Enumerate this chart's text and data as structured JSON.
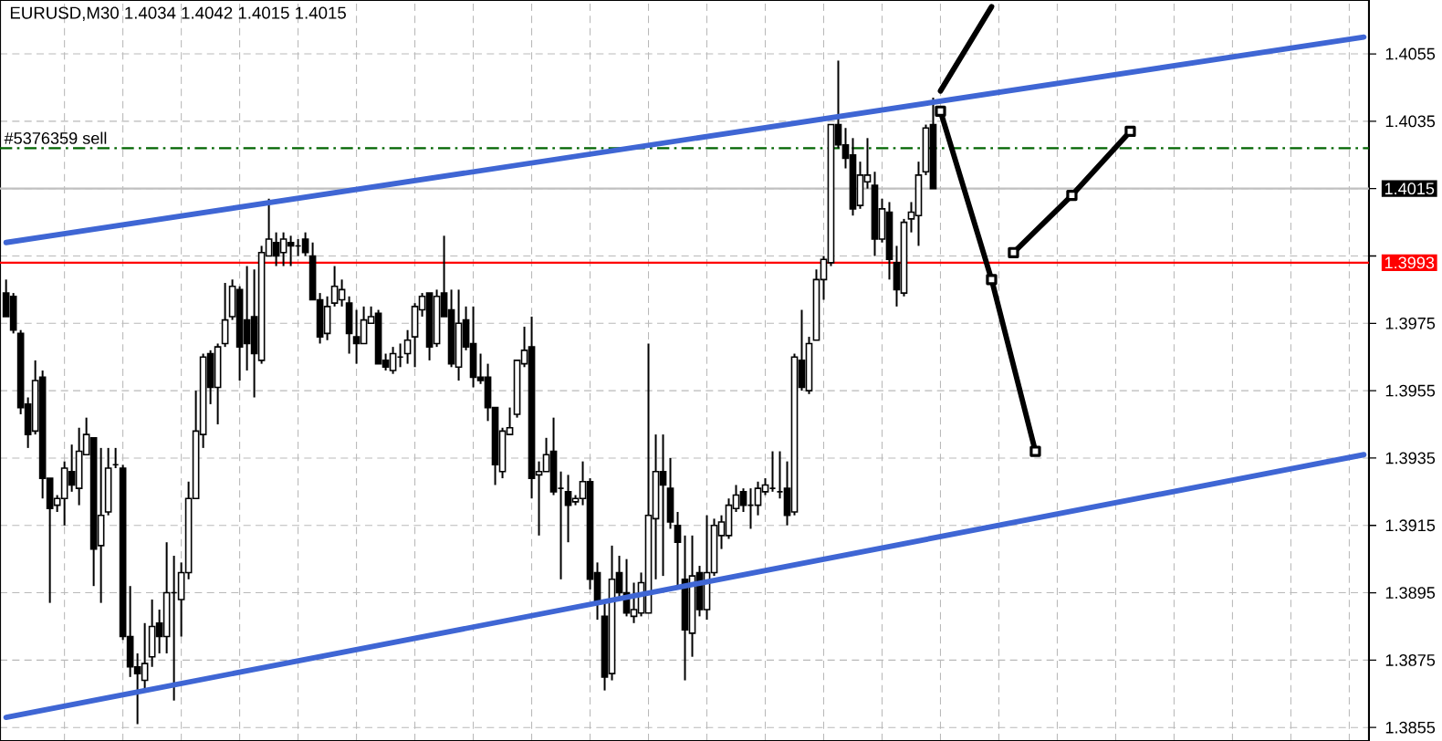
{
  "chart_data": {
    "type": "candlestick",
    "title": "EURUSD,M30  1.4034 1.4042 1.4015 1.4015",
    "categories": [
      null,
      null,
      null,
      null,
      null,
      null,
      null,
      null,
      null,
      null,
      null,
      null,
      null,
      null,
      null,
      null,
      null,
      null,
      null,
      null,
      null,
      null,
      null,
      null,
      null,
      null,
      null,
      null,
      null,
      null,
      null,
      null,
      null,
      null,
      null,
      null,
      null,
      null,
      null,
      null,
      null,
      null,
      null,
      null,
      null,
      null,
      null,
      null,
      null,
      null,
      null,
      null,
      null,
      null,
      null,
      null,
      null,
      null,
      null,
      null,
      null,
      null,
      null,
      null,
      null,
      null,
      null,
      null,
      null,
      null,
      null,
      null,
      null,
      null,
      null,
      null,
      null,
      null,
      null,
      null,
      null,
      null,
      null,
      null,
      null,
      null,
      null,
      null,
      null,
      null,
      null,
      null,
      null,
      null,
      null,
      null,
      null,
      null,
      null,
      null,
      null,
      null,
      null,
      null,
      null,
      null,
      null,
      null,
      null,
      null,
      null,
      null,
      null,
      null,
      null,
      null,
      null,
      null,
      null,
      null,
      null,
      null,
      null,
      null,
      null,
      null,
      null,
      null,
      null,
      null,
      null,
      null,
      null,
      null,
      null,
      null,
      null,
      null,
      null,
      null,
      null,
      null,
      null,
      null,
      null,
      null,
      null,
      null,
      null,
      null,
      null,
      null,
      null,
      null,
      null,
      null,
      null,
      null,
      null,
      null,
      null,
      null,
      null,
      null,
      null,
      null,
      null,
      null,
      null,
      null,
      null,
      null,
      null,
      null,
      null,
      null,
      null,
      null,
      null,
      null,
      null,
      null,
      null,
      null,
      null,
      null,
      null
    ],
    "ohlc": [
      [
        1.3984,
        1.3988,
        1.3977,
        1.3977
      ],
      [
        1.3983,
        1.3984,
        1.3972,
        1.3973
      ],
      [
        1.3972,
        1.3973,
        1.3948,
        1.395
      ],
      [
        1.3951,
        1.3953,
        1.3938,
        1.3942
      ],
      [
        1.3943,
        1.3964,
        1.3942,
        1.3958
      ],
      [
        1.3959,
        1.3961,
        1.3923,
        1.3929
      ],
      [
        1.3929,
        1.3929,
        1.3892,
        1.392
      ],
      [
        1.3921,
        1.3924,
        1.3919,
        1.3923
      ],
      [
        1.3923,
        1.3934,
        1.3915,
        1.3932
      ],
      [
        1.3931,
        1.3939,
        1.3925,
        1.3927
      ],
      [
        1.3926,
        1.3944,
        1.3921,
        1.3937
      ],
      [
        1.3936,
        1.3947,
        1.3936,
        1.3942
      ],
      [
        1.3941,
        1.3941,
        1.3897,
        1.3908
      ],
      [
        1.3909,
        1.3938,
        1.3892,
        1.3918
      ],
      [
        1.3919,
        1.3938,
        1.3918,
        1.3932
      ],
      [
        1.3933,
        1.3938,
        1.3932,
        1.3933
      ],
      [
        1.3932,
        1.3933,
        1.3881,
        1.3882
      ],
      [
        1.3882,
        1.3897,
        1.387,
        1.3873
      ],
      [
        1.3873,
        1.3877,
        1.3856,
        1.3871
      ],
      [
        1.3869,
        1.3886,
        1.3866,
        1.3874
      ],
      [
        1.3876,
        1.3893,
        1.3873,
        1.3885
      ],
      [
        1.3886,
        1.389,
        1.3877,
        1.3882
      ],
      [
        1.3882,
        1.391,
        1.3877,
        1.3895
      ],
      [
        1.3895,
        1.3906,
        1.3863,
        1.3895
      ],
      [
        1.3893,
        1.3904,
        1.3882,
        1.3901
      ],
      [
        1.3901,
        1.3928,
        1.3899,
        1.3923
      ],
      [
        1.3923,
        1.3955,
        1.3923,
        1.3943
      ],
      [
        1.3942,
        1.3966,
        1.3938,
        1.3965
      ],
      [
        1.3966,
        1.3967,
        1.3951,
        1.3956
      ],
      [
        1.3956,
        1.3969,
        1.3945,
        1.3968
      ],
      [
        1.3969,
        1.3987,
        1.3968,
        1.3976
      ],
      [
        1.3977,
        1.3988,
        1.3976,
        1.3986
      ],
      [
        1.3985,
        1.3986,
        1.3958,
        1.3968
      ],
      [
        1.3976,
        1.3992,
        1.3961,
        1.3969
      ],
      [
        1.3977,
        1.3991,
        1.3953,
        1.3966
      ],
      [
        1.3964,
        1.3998,
        1.3963,
        1.3996
      ],
      [
        1.3995,
        1.4012,
        1.3995,
        1.4
      ],
      [
        1.3999,
        1.4002,
        1.3992,
        1.3995
      ],
      [
        1.3996,
        1.4002,
        1.3992,
        1.4
      ],
      [
        1.3999,
        1.4001,
        1.3992,
        1.3998
      ],
      [
        1.3998,
        1.4,
        1.3995,
        1.3998
      ],
      [
        1.4,
        1.4002,
        1.3995,
        1.3996
      ],
      [
        1.3995,
        1.3999,
        1.3982,
        1.3982
      ],
      [
        1.3982,
        1.3984,
        1.3969,
        1.3971
      ],
      [
        1.3972,
        1.3983,
        1.397,
        1.398
      ],
      [
        1.3981,
        1.3992,
        1.398,
        1.3986
      ],
      [
        1.3982,
        1.3988,
        1.398,
        1.3985
      ],
      [
        1.3981,
        1.3983,
        1.3966,
        1.3972
      ],
      [
        1.3971,
        1.3979,
        1.3963,
        1.3969
      ],
      [
        1.3969,
        1.398,
        1.3969,
        1.3976
      ],
      [
        1.3975,
        1.398,
        1.3975,
        1.3977
      ],
      [
        1.3978,
        1.3979,
        1.3963,
        1.3963
      ],
      [
        1.3964,
        1.3966,
        1.3961,
        1.3962
      ],
      [
        1.3961,
        1.3968,
        1.396,
        1.3966
      ],
      [
        1.3965,
        1.3969,
        1.3962,
        1.3965
      ],
      [
        1.3966,
        1.3973,
        1.3963,
        1.397
      ],
      [
        1.3971,
        1.3981,
        1.3962,
        1.398
      ],
      [
        1.3979,
        1.3984,
        1.3977,
        1.3983
      ],
      [
        1.3984,
        1.3984,
        1.3964,
        1.3968
      ],
      [
        1.3969,
        1.3985,
        1.3968,
        1.3983
      ],
      [
        1.3984,
        1.4001,
        1.3977,
        1.3977
      ],
      [
        1.3979,
        1.3985,
        1.3962,
        1.3963
      ],
      [
        1.3962,
        1.3985,
        1.3958,
        1.3975
      ],
      [
        1.3976,
        1.398,
        1.3967,
        1.3968
      ],
      [
        1.3969,
        1.398,
        1.3956,
        1.3959
      ],
      [
        1.3959,
        1.3966,
        1.3957,
        1.3958
      ],
      [
        1.3959,
        1.3963,
        1.3946,
        1.395
      ],
      [
        1.395,
        1.395,
        1.3927,
        1.3933
      ],
      [
        1.3931,
        1.3944,
        1.3929,
        1.3943
      ],
      [
        1.3942,
        1.395,
        1.3942,
        1.3944
      ],
      [
        1.3948,
        1.3964,
        1.3947,
        1.3964
      ],
      [
        1.3963,
        1.3974,
        1.3962,
        1.3967
      ],
      [
        1.3968,
        1.3977,
        1.3923,
        1.3929
      ],
      [
        1.393,
        1.3934,
        1.3912,
        1.3931
      ],
      [
        1.3931,
        1.3941,
        1.3931,
        1.3936
      ],
      [
        1.3937,
        1.3947,
        1.3924,
        1.3925
      ],
      [
        1.3926,
        1.3931,
        1.3899,
        1.3926
      ],
      [
        1.3925,
        1.393,
        1.391,
        1.3921
      ],
      [
        1.3922,
        1.3924,
        1.3921,
        1.3923
      ],
      [
        1.3923,
        1.3934,
        1.3921,
        1.3928
      ],
      [
        1.3928,
        1.3929,
        1.3896,
        1.3899
      ],
      [
        1.3901,
        1.3904,
        1.3887,
        1.3892
      ],
      [
        1.3888,
        1.3892,
        1.3866,
        1.387
      ],
      [
        1.3871,
        1.3909,
        1.3869,
        1.3899
      ],
      [
        1.3901,
        1.3906,
        1.3893,
        1.3895
      ],
      [
        1.3895,
        1.3905,
        1.3888,
        1.3889
      ],
      [
        1.3888,
        1.3898,
        1.3886,
        1.389
      ],
      [
        1.3889,
        1.3901,
        1.3888,
        1.3898
      ],
      [
        1.3889,
        1.3969,
        1.3889,
        1.3918
      ],
      [
        1.3917,
        1.3942,
        1.3899,
        1.3931
      ],
      [
        1.3931,
        1.3942,
        1.39,
        1.3927
      ],
      [
        1.3926,
        1.3935,
        1.3914,
        1.3916
      ],
      [
        1.3915,
        1.3919,
        1.3897,
        1.391
      ],
      [
        1.3899,
        1.3912,
        1.3869,
        1.3884
      ],
      [
        1.3883,
        1.3912,
        1.3876,
        1.39
      ],
      [
        1.3901,
        1.3903,
        1.3888,
        1.389
      ],
      [
        1.389,
        1.3918,
        1.3887,
        1.3901
      ],
      [
        1.3901,
        1.3917,
        1.39,
        1.3915
      ],
      [
        1.3912,
        1.3918,
        1.3908,
        1.3916
      ],
      [
        1.3912,
        1.3923,
        1.3911,
        1.3921
      ],
      [
        1.392,
        1.3927,
        1.3919,
        1.3924
      ],
      [
        1.3925,
        1.3926,
        1.3919,
        1.3921
      ],
      [
        1.3921,
        1.3926,
        1.3914,
        1.3921
      ],
      [
        1.3921,
        1.3928,
        1.3918,
        1.3926
      ],
      [
        1.3925,
        1.3929,
        1.3924,
        1.3927
      ],
      [
        1.3926,
        1.3937,
        1.3925,
        1.3926
      ],
      [
        1.3925,
        1.3937,
        1.3923,
        1.3925
      ],
      [
        1.3926,
        1.3934,
        1.3915,
        1.3918
      ],
      [
        1.3919,
        1.3966,
        1.3918,
        1.3965
      ],
      [
        1.3964,
        1.3979,
        1.3955,
        1.3956
      ],
      [
        1.3955,
        1.3971,
        1.3954,
        1.3969
      ],
      [
        1.397,
        1.3991,
        1.397,
        1.3988
      ],
      [
        1.3988,
        1.3995,
        1.3982,
        1.3994
      ],
      [
        1.3993,
        1.4034,
        1.3992,
        1.4034
      ],
      [
        1.4034,
        1.4053,
        1.4027,
        1.4028
      ],
      [
        1.4028,
        1.4033,
        1.4021,
        1.4024
      ],
      [
        1.4025,
        1.403,
        1.4007,
        1.4009
      ],
      [
        1.401,
        1.4023,
        1.4009,
        1.4019
      ],
      [
        1.4017,
        1.403,
        1.4015,
        1.4019
      ],
      [
        1.4016,
        1.402,
        1.3995,
        1.4
      ],
      [
        1.4,
        1.4012,
        1.3999,
        1.4009
      ],
      [
        1.4008,
        1.4011,
        1.3988,
        1.3994
      ],
      [
        1.3993,
        1.3998,
        1.398,
        1.3985
      ],
      [
        1.3984,
        1.4006,
        1.3983,
        1.4005
      ],
      [
        1.4006,
        1.4011,
        1.4002,
        1.4008
      ],
      [
        1.4007,
        1.4023,
        1.3998,
        1.4019
      ],
      [
        1.402,
        1.4034,
        1.4019,
        1.4033
      ],
      [
        1.4034,
        1.4042,
        1.4015,
        1.4015
      ],
      null,
      null,
      null,
      null,
      null,
      null,
      null,
      null,
      null,
      null,
      null,
      null,
      null,
      null,
      null,
      null,
      null,
      null,
      null,
      null,
      null,
      null,
      null,
      null,
      null,
      null,
      null,
      null,
      null,
      null,
      null,
      null,
      null,
      null,
      null,
      null,
      null,
      null,
      null,
      null,
      null,
      null,
      null,
      null,
      null,
      null,
      null,
      null,
      null,
      null,
      null,
      null,
      null,
      null,
      null,
      null,
      null,
      null,
      null
    ],
    "series": [
      {
        "type": "line",
        "color": "#3f66d4",
        "marker": "none",
        "values": [
          1.3999,
          null,
          null,
          null,
          null,
          null,
          null,
          null,
          null,
          null,
          null,
          null,
          null,
          null,
          null,
          null,
          null,
          null,
          null,
          null,
          null,
          null,
          null,
          null,
          null,
          null,
          null,
          null,
          null,
          null,
          null,
          null,
          null,
          null,
          null,
          null,
          null,
          null,
          null,
          null,
          null,
          null,
          null,
          null,
          null,
          null,
          null,
          null,
          null,
          null,
          null,
          null,
          null,
          null,
          null,
          null,
          null,
          null,
          null,
          null,
          null,
          null,
          null,
          null,
          null,
          null,
          null,
          null,
          null,
          null,
          null,
          null,
          null,
          null,
          null,
          null,
          null,
          null,
          null,
          null,
          null,
          null,
          null,
          null,
          null,
          null,
          null,
          null,
          null,
          null,
          null,
          null,
          null,
          null,
          null,
          null,
          null,
          null,
          null,
          null,
          null,
          null,
          null,
          null,
          null,
          null,
          null,
          null,
          null,
          null,
          null,
          null,
          null,
          null,
          null,
          null,
          null,
          null,
          null,
          null,
          null,
          null,
          null,
          null,
          null,
          null,
          null,
          null,
          null,
          null,
          null,
          null,
          null,
          null,
          null,
          null,
          null,
          null,
          null,
          null,
          null,
          null,
          null,
          null,
          null,
          null,
          null,
          null,
          null,
          null,
          null,
          null,
          null,
          null,
          null,
          null,
          null,
          null,
          null,
          null,
          null,
          null,
          null,
          null,
          null,
          null,
          null,
          null,
          null,
          null,
          null,
          null,
          null,
          null,
          null,
          null,
          null,
          null,
          null,
          null,
          null,
          null,
          null,
          null,
          null,
          null,
          1.406
        ]
      },
      {
        "type": "line",
        "color": "#3f66d4",
        "marker": "none",
        "values": [
          1.3858,
          null,
          null,
          null,
          null,
          null,
          null,
          null,
          null,
          null,
          null,
          null,
          null,
          null,
          null,
          null,
          null,
          null,
          null,
          null,
          null,
          null,
          null,
          null,
          null,
          null,
          null,
          null,
          null,
          null,
          null,
          null,
          null,
          null,
          null,
          null,
          null,
          null,
          null,
          null,
          null,
          null,
          null,
          null,
          null,
          null,
          null,
          null,
          null,
          null,
          null,
          null,
          null,
          null,
          null,
          null,
          null,
          null,
          null,
          null,
          null,
          null,
          null,
          null,
          null,
          null,
          null,
          null,
          null,
          null,
          null,
          null,
          null,
          null,
          null,
          null,
          null,
          null,
          null,
          null,
          null,
          null,
          null,
          null,
          null,
          null,
          null,
          null,
          null,
          null,
          null,
          null,
          null,
          null,
          null,
          null,
          null,
          null,
          null,
          null,
          null,
          null,
          null,
          null,
          null,
          null,
          null,
          null,
          null,
          null,
          null,
          null,
          null,
          null,
          null,
          null,
          null,
          null,
          null,
          null,
          null,
          null,
          null,
          null,
          null,
          null,
          null,
          null,
          null,
          null,
          null,
          null,
          null,
          null,
          null,
          null,
          null,
          null,
          null,
          null,
          null,
          null,
          null,
          null,
          null,
          null,
          null,
          null,
          null,
          null,
          null,
          null,
          null,
          null,
          null,
          null,
          null,
          null,
          null,
          null,
          null,
          null,
          null,
          null,
          null,
          null,
          null,
          null,
          null,
          null,
          null,
          null,
          null,
          null,
          null,
          null,
          null,
          null,
          null,
          null,
          null,
          null,
          null,
          null,
          null,
          null,
          1.3936
        ]
      },
      {
        "type": "line",
        "color": "#000000",
        "marker": "none",
        "values": [
          null,
          null,
          null,
          null,
          null,
          null,
          null,
          null,
          null,
          null,
          null,
          null,
          null,
          null,
          null,
          null,
          null,
          null,
          null,
          null,
          null,
          null,
          null,
          null,
          null,
          null,
          null,
          null,
          null,
          null,
          null,
          null,
          null,
          null,
          null,
          null,
          null,
          null,
          null,
          null,
          null,
          null,
          null,
          null,
          null,
          null,
          null,
          null,
          null,
          null,
          null,
          null,
          null,
          null,
          null,
          null,
          null,
          null,
          null,
          null,
          null,
          null,
          null,
          null,
          null,
          null,
          null,
          null,
          null,
          null,
          null,
          null,
          null,
          null,
          null,
          null,
          null,
          null,
          null,
          null,
          null,
          null,
          null,
          null,
          null,
          null,
          null,
          null,
          null,
          null,
          null,
          null,
          null,
          null,
          null,
          null,
          null,
          null,
          null,
          null,
          null,
          null,
          null,
          null,
          null,
          null,
          null,
          null,
          null,
          null,
          null,
          null,
          null,
          null,
          null,
          null,
          null,
          null,
          null,
          null,
          null,
          null,
          null,
          null,
          null,
          null,
          null,
          null,
          1.4044,
          null,
          null,
          null,
          null,
          null,
          null,
          1.4069,
          null,
          null,
          null,
          null,
          null,
          null,
          null,
          null,
          null,
          null,
          null,
          null,
          null,
          null,
          null,
          null,
          null,
          null,
          null,
          null,
          null,
          null,
          null,
          null,
          null,
          null,
          null,
          null,
          null,
          null,
          null,
          null,
          null,
          null,
          null,
          null,
          null,
          null,
          null,
          null,
          null,
          null,
          null,
          null,
          null,
          null,
          null,
          null,
          null,
          null,
          null
        ]
      },
      {
        "type": "line",
        "color": "#000000",
        "marker": "square",
        "values": [
          null,
          null,
          null,
          null,
          null,
          null,
          null,
          null,
          null,
          null,
          null,
          null,
          null,
          null,
          null,
          null,
          null,
          null,
          null,
          null,
          null,
          null,
          null,
          null,
          null,
          null,
          null,
          null,
          null,
          null,
          null,
          null,
          null,
          null,
          null,
          null,
          null,
          null,
          null,
          null,
          null,
          null,
          null,
          null,
          null,
          null,
          null,
          null,
          null,
          null,
          null,
          null,
          null,
          null,
          null,
          null,
          null,
          null,
          null,
          null,
          null,
          null,
          null,
          null,
          null,
          null,
          null,
          null,
          null,
          null,
          null,
          null,
          null,
          null,
          null,
          null,
          null,
          null,
          null,
          null,
          null,
          null,
          null,
          null,
          null,
          null,
          null,
          null,
          null,
          null,
          null,
          null,
          null,
          null,
          null,
          null,
          null,
          null,
          null,
          null,
          null,
          null,
          null,
          null,
          null,
          null,
          null,
          null,
          null,
          null,
          null,
          null,
          null,
          null,
          null,
          null,
          null,
          null,
          null,
          null,
          null,
          null,
          null,
          null,
          null,
          null,
          null,
          null,
          1.4038,
          null,
          null,
          null,
          null,
          null,
          null,
          1.3988,
          null,
          null,
          null,
          null,
          null,
          1.3937,
          null,
          null,
          null,
          null,
          null,
          null,
          null,
          null,
          null,
          null,
          null,
          null,
          null,
          null,
          null,
          null,
          null,
          null,
          null,
          null,
          null,
          null,
          null,
          null,
          null,
          null,
          null,
          null,
          null,
          null,
          null,
          null,
          null,
          null,
          null,
          null,
          null,
          null,
          null,
          null,
          null,
          null,
          null,
          null,
          null
        ]
      },
      {
        "type": "line",
        "color": "#000000",
        "marker": "square",
        "values": [
          null,
          null,
          null,
          null,
          null,
          null,
          null,
          null,
          null,
          null,
          null,
          null,
          null,
          null,
          null,
          null,
          null,
          null,
          null,
          null,
          null,
          null,
          null,
          null,
          null,
          null,
          null,
          null,
          null,
          null,
          null,
          null,
          null,
          null,
          null,
          null,
          null,
          null,
          null,
          null,
          null,
          null,
          null,
          null,
          null,
          null,
          null,
          null,
          null,
          null,
          null,
          null,
          null,
          null,
          null,
          null,
          null,
          null,
          null,
          null,
          null,
          null,
          null,
          null,
          null,
          null,
          null,
          null,
          null,
          null,
          null,
          null,
          null,
          null,
          null,
          null,
          null,
          null,
          null,
          null,
          null,
          null,
          null,
          null,
          null,
          null,
          null,
          null,
          null,
          null,
          null,
          null,
          null,
          null,
          null,
          null,
          null,
          null,
          null,
          null,
          null,
          null,
          null,
          null,
          null,
          null,
          null,
          null,
          null,
          null,
          null,
          null,
          null,
          null,
          null,
          null,
          null,
          null,
          null,
          null,
          null,
          null,
          null,
          null,
          null,
          null,
          null,
          null,
          null,
          null,
          null,
          null,
          null,
          null,
          null,
          null,
          null,
          null,
          1.3996,
          null,
          null,
          null,
          null,
          null,
          null,
          null,
          1.4013,
          null,
          null,
          null,
          null,
          null,
          null,
          null,
          1.4032,
          null,
          null,
          null,
          null,
          null,
          null,
          null,
          null,
          null,
          null,
          null,
          null,
          null,
          null,
          null,
          null,
          null,
          null,
          null,
          null,
          null,
          null,
          null,
          null,
          null,
          null,
          null,
          null,
          null,
          null,
          null,
          null
        ]
      }
    ],
    "ref_lines": [
      {
        "axis": "y",
        "value": 1.4027,
        "label": "#5376359 sell",
        "color": "#006400",
        "line_style": "dashed"
      },
      {
        "axis": "y",
        "value": 1.4015,
        "label": "1.4015",
        "color": "#c0c0c0",
        "line_style": "solid"
      },
      {
        "axis": "y",
        "value": 1.3993,
        "label": "1.3993",
        "color": "#ff0000",
        "line_style": "solid"
      }
    ],
    "ylim": [
      1.3851,
      1.4071
    ],
    "yticks": [
      1.4055,
      1.4035,
      {
        "value": 1.4015,
        "label": null
      },
      {
        "value": 1.3995,
        "label": null
      },
      1.3975,
      1.3955,
      1.3935,
      1.3915,
      1.3895,
      1.3875,
      1.3855
    ],
    "grid": true,
    "tick_labels": "y"
  }
}
